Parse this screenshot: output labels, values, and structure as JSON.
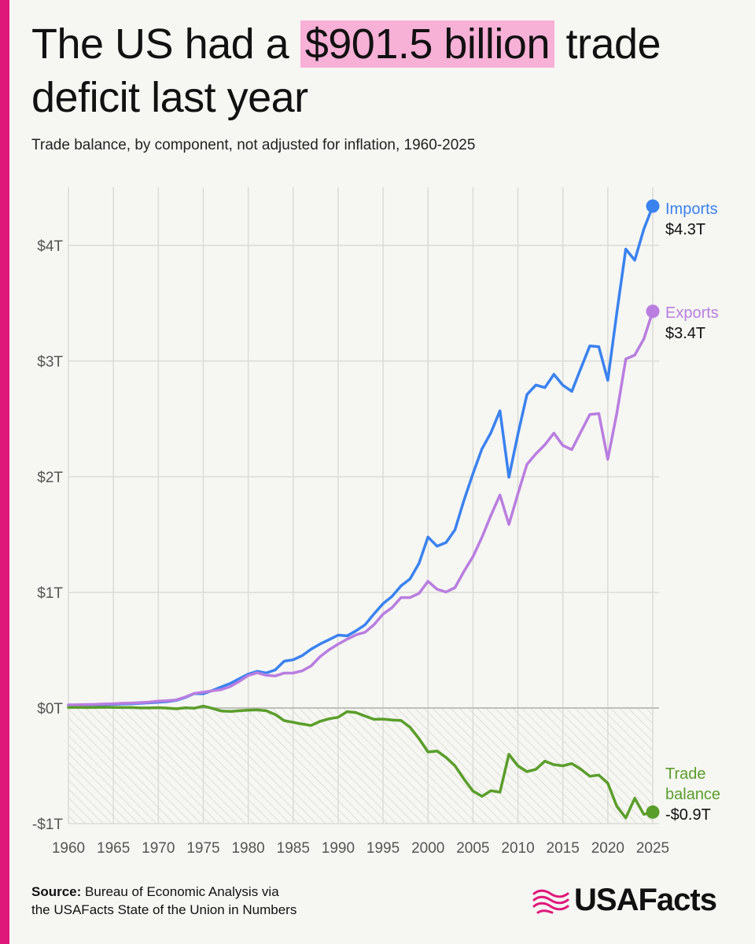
{
  "title": {
    "before": "The US had a ",
    "highlight": "$901.5 billion",
    "after": " trade deficit last year"
  },
  "subtitle": "Trade balance, by component, not adjusted for inflation, 1960-2025",
  "source": {
    "label": "Source:",
    "line1": " Bureau of Economic Analysis via",
    "line2": "the USAFacts State of the Union in Numbers"
  },
  "logo": {
    "text": "USAFacts"
  },
  "colors": {
    "imports": "#3a82f0",
    "exports": "#b97ee0",
    "balance": "#5a9e2a",
    "accent": "#e0177a",
    "highlight": "#f7b0d6"
  },
  "chart_data": {
    "type": "line",
    "x": [
      1960,
      1961,
      1962,
      1963,
      1964,
      1965,
      1966,
      1967,
      1968,
      1969,
      1970,
      1971,
      1972,
      1973,
      1974,
      1975,
      1976,
      1977,
      1978,
      1979,
      1980,
      1981,
      1982,
      1983,
      1984,
      1985,
      1986,
      1987,
      1988,
      1989,
      1990,
      1991,
      1992,
      1993,
      1994,
      1995,
      1996,
      1997,
      1998,
      1999,
      2000,
      2001,
      2002,
      2003,
      2004,
      2005,
      2006,
      2007,
      2008,
      2009,
      2010,
      2011,
      2012,
      2013,
      2014,
      2015,
      2016,
      2017,
      2018,
      2019,
      2020,
      2021,
      2022,
      2023,
      2024,
      2025
    ],
    "series": [
      {
        "name": "Imports",
        "end_label": "$4.3T",
        "color_key": "imports",
        "values": [
          0.023,
          0.023,
          0.025,
          0.026,
          0.029,
          0.031,
          0.035,
          0.037,
          0.041,
          0.045,
          0.05,
          0.055,
          0.066,
          0.091,
          0.125,
          0.123,
          0.151,
          0.182,
          0.212,
          0.253,
          0.293,
          0.317,
          0.303,
          0.329,
          0.405,
          0.417,
          0.453,
          0.509,
          0.554,
          0.591,
          0.63,
          0.624,
          0.668,
          0.72,
          0.814,
          0.903,
          0.965,
          1.056,
          1.116,
          1.252,
          1.478,
          1.399,
          1.43,
          1.541,
          1.797,
          2.027,
          2.24,
          2.38,
          2.57,
          1.996,
          2.366,
          2.71,
          2.793,
          2.771,
          2.885,
          2.791,
          2.738,
          2.938,
          3.131,
          3.124,
          2.834,
          3.417,
          3.969,
          3.872,
          4.14,
          4.34
        ]
      },
      {
        "name": "Exports",
        "end_label": "$3.4T",
        "color_key": "exports",
        "values": [
          0.027,
          0.028,
          0.03,
          0.031,
          0.035,
          0.037,
          0.041,
          0.043,
          0.047,
          0.051,
          0.059,
          0.063,
          0.07,
          0.095,
          0.126,
          0.137,
          0.148,
          0.159,
          0.186,
          0.23,
          0.281,
          0.305,
          0.283,
          0.277,
          0.302,
          0.303,
          0.321,
          0.364,
          0.445,
          0.504,
          0.552,
          0.595,
          0.633,
          0.655,
          0.721,
          0.812,
          0.868,
          0.955,
          0.955,
          0.991,
          1.096,
          1.027,
          1.003,
          1.041,
          1.182,
          1.309,
          1.476,
          1.665,
          1.842,
          1.588,
          1.852,
          2.106,
          2.198,
          2.276,
          2.377,
          2.27,
          2.235,
          2.388,
          2.538,
          2.546,
          2.151,
          2.55,
          3.018,
          3.052,
          3.191,
          3.43
        ]
      },
      {
        "name": "Trade balance",
        "end_label": "-$0.9T",
        "color_key": "balance",
        "values": [
          0.004,
          0.005,
          0.004,
          0.005,
          0.007,
          0.005,
          0.004,
          0.004,
          0.001,
          0.001,
          0.003,
          -0.001,
          -0.007,
          0.002,
          -0.002,
          0.016,
          -0.003,
          -0.026,
          -0.03,
          -0.024,
          -0.019,
          -0.016,
          -0.024,
          -0.056,
          -0.109,
          -0.124,
          -0.139,
          -0.151,
          -0.115,
          -0.093,
          -0.08,
          -0.031,
          -0.04,
          -0.07,
          -0.098,
          -0.096,
          -0.104,
          -0.108,
          -0.166,
          -0.265,
          -0.38,
          -0.372,
          -0.427,
          -0.5,
          -0.615,
          -0.718,
          -0.764,
          -0.715,
          -0.728,
          -0.4,
          -0.5,
          -0.55,
          -0.53,
          -0.46,
          -0.49,
          -0.5,
          -0.48,
          -0.53,
          -0.59,
          -0.58,
          -0.65,
          -0.85,
          -0.95,
          -0.78,
          -0.92,
          -0.9
        ]
      }
    ],
    "ylim": [
      -1,
      4.5
    ],
    "y_ticks": [
      -1,
      0,
      1,
      2,
      3,
      4
    ],
    "y_tick_labels": [
      "-$1T",
      "$0T",
      "$1T",
      "$2T",
      "$3T",
      "$4T"
    ],
    "x_ticks": [
      1960,
      1965,
      1970,
      1975,
      1980,
      1985,
      1990,
      1995,
      2000,
      2005,
      2010,
      2015,
      2020,
      2025
    ],
    "grid": true,
    "negative_region_hatched": true,
    "legend": "direct labels at line ends"
  }
}
